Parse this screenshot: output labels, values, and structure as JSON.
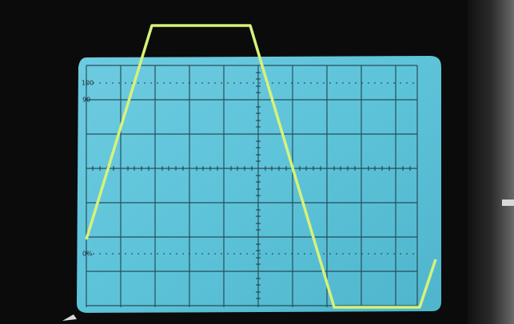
{
  "screen": {
    "labels": {
      "top": "100",
      "upper": "90",
      "zero": "0%"
    }
  }
}
